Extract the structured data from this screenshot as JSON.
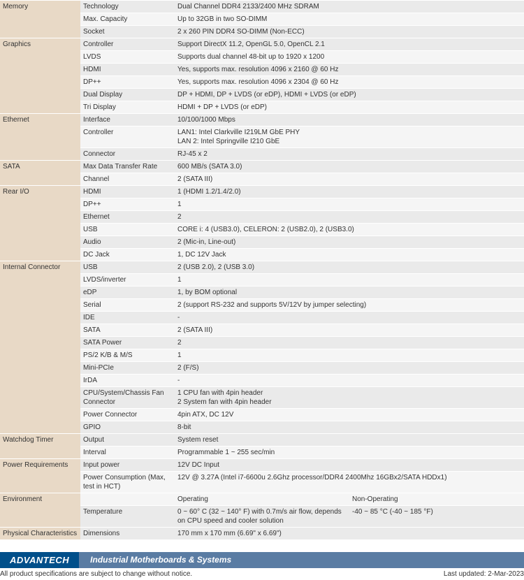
{
  "colors": {
    "category_bg": "#e8d9c6",
    "row_bg": "#eaeaea",
    "alt_bg": "#f5f5f5",
    "logo_bg": "#004f8a",
    "catbar_bg": "#5a7ca3",
    "text": "#333333"
  },
  "sections": [
    {
      "name": "Memory",
      "rows": [
        {
          "label": "Technology",
          "value": "Dual Channel DDR4 2133/2400 MHz SDRAM"
        },
        {
          "label": "Max. Capacity",
          "value": "Up to 32GB in two SO-DIMM"
        },
        {
          "label": "Socket",
          "value": "2 x 260 PIN DDR4 SO-DIMM (Non-ECC)"
        }
      ]
    },
    {
      "name": "Graphics",
      "rows": [
        {
          "label": "Controller",
          "value": "Support DirectX 11.2, OpenGL 5.0, OpenCL 2.1"
        },
        {
          "label": "LVDS",
          "value": "Supports dual channel 48-bit up to 1920 x 1200"
        },
        {
          "label": "HDMI",
          "value": "Yes, supports max. resolution 4096 x 2160 @ 60 Hz"
        },
        {
          "label": "DP++",
          "value": "Yes, supports max. resolution 4096 x 2304 @ 60 Hz"
        },
        {
          "label": "Dual Display",
          "value": "DP + HDMI, DP + LVDS (or eDP), HDMI + LVDS (or eDP)"
        },
        {
          "label": "Tri Display",
          "value": "HDMI + DP + LVDS (or eDP)"
        }
      ]
    },
    {
      "name": "Ethernet",
      "rows": [
        {
          "label": "Interface",
          "value": "10/100/1000 Mbps"
        },
        {
          "label": "Controller",
          "value": "LAN1: Intel Clarkville I219LM GbE PHY\nLAN 2: Intel Springville I210 GbE"
        },
        {
          "label": "Connector",
          "value": "RJ-45 x 2"
        }
      ]
    },
    {
      "name": "SATA",
      "rows": [
        {
          "label": "Max Data Transfer Rate",
          "value": "600 MB/s (SATA 3.0)"
        },
        {
          "label": "Channel",
          "value": "2 (SATA III)"
        }
      ]
    },
    {
      "name": "Rear I/O",
      "rows": [
        {
          "label": "HDMI",
          "value": "1 (HDMI 1.2/1.4/2.0)"
        },
        {
          "label": "DP++",
          "value": "1"
        },
        {
          "label": "Ethernet",
          "value": "2"
        },
        {
          "label": "USB",
          "value": "CORE i: 4 (USB3.0), CELERON: 2 (USB2.0), 2 (USB3.0)"
        },
        {
          "label": "Audio",
          "value": "2 (Mic-in, Line-out)"
        },
        {
          "label": "DC Jack",
          "value": "1, DC 12V Jack"
        }
      ]
    },
    {
      "name": "Internal Connector",
      "rows": [
        {
          "label": "USB",
          "value": "2 (USB 2.0), 2 (USB 3.0)"
        },
        {
          "label": "LVDS/inverter",
          "value": "1"
        },
        {
          "label": "eDP",
          "value": "1, by BOM optional"
        },
        {
          "label": "Serial",
          "value": "2 (support RS-232 and supports 5V/12V by jumper selecting)"
        },
        {
          "label": "IDE",
          "value": "-"
        },
        {
          "label": "SATA",
          "value": "2 (SATA III)"
        },
        {
          "label": "SATA Power",
          "value": "2"
        },
        {
          "label": "PS/2 K/B & M/S",
          "value": "1"
        },
        {
          "label": "Mini-PCIe",
          "value": "2 (F/S)"
        },
        {
          "label": "IrDA",
          "value": "-"
        },
        {
          "label": "CPU/System/Chassis Fan Connector",
          "value": "1 CPU fan with 4pin header\n2 System fan with 4pin header"
        },
        {
          "label": "Power Connector",
          "value": "4pin ATX, DC 12V"
        },
        {
          "label": "GPIO",
          "value": "8-bit"
        }
      ]
    },
    {
      "name": "Watchdog Timer",
      "rows": [
        {
          "label": "Output",
          "value": "System reset"
        },
        {
          "label": "Interval",
          "value": "Programmable 1 ~ 255 sec/min"
        }
      ]
    },
    {
      "name": "Power Requirements",
      "rows": [
        {
          "label": "Input power",
          "value": "12V DC Input"
        },
        {
          "label": "Power Consumption (Max, test in HCT)",
          "value": "12V @ 3.27A (Intel i7-6600u 2.6Ghz processor/DDR4 2400Mhz 16GBx2/SATA HDDx1)"
        }
      ]
    },
    {
      "name": "Environment",
      "header": {
        "col1": "Operating",
        "col2": "Non-Operating"
      },
      "rows": [
        {
          "label": "Temperature",
          "value": "0 ~ 60° C (32 ~ 140° F) with 0.7m/s air flow, depends on CPU speed and cooler solution",
          "value2": "-40 ~ 85 °C (-40 ~ 185 °F)"
        }
      ]
    },
    {
      "name": "Physical Characteristics",
      "rows": [
        {
          "label": "Dimensions",
          "value": "170 mm x 170 mm (6.69\" x 6.69\")"
        }
      ]
    }
  ],
  "footer": {
    "logo": "ADVANTECH",
    "category": "Industrial Motherboards & Systems",
    "disclaimer": "All product specifications are subject to change without notice.",
    "updated": "Last updated: 2-Mar-2023"
  }
}
